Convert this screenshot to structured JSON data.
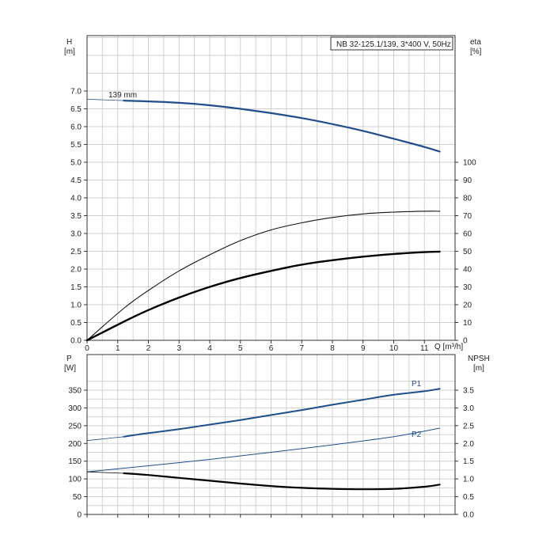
{
  "chart_data": [
    {
      "type": "line",
      "title": "NB 32-125.1/139, 3*400 V, 50Hz",
      "x_label": "Q [m³/h]",
      "x_ticks": [
        "0",
        "1",
        "2",
        "3",
        "4",
        "5",
        "6",
        "7",
        "8",
        "9",
        "10",
        "11"
      ],
      "xlim": [
        0,
        12
      ],
      "y_left": {
        "label_line1": "H",
        "label_line2": "[m]",
        "ticks": [
          "0.0",
          "0.5",
          "1.0",
          "1.5",
          "2.0",
          "2.5",
          "3.0",
          "3.5",
          "4.0",
          "4.5",
          "5.0",
          "5.5",
          "6.0",
          "6.5",
          "7.0"
        ],
        "ylim": [
          0,
          7.0
        ]
      },
      "y_right": {
        "label_line1": "eta",
        "label_line2": "[%]",
        "ticks": [
          "0",
          "10",
          "20",
          "30",
          "40",
          "50",
          "60",
          "70",
          "80",
          "90",
          "100"
        ],
        "ylim": [
          0,
          100
        ]
      },
      "grid": true,
      "series": [
        {
          "name": "139 mm",
          "axis": "H",
          "color": "#1f4e8c",
          "x": [
            1.2,
            2,
            3,
            4,
            5,
            6,
            7,
            8,
            9,
            10,
            11,
            11.5
          ],
          "y": [
            6.73,
            6.71,
            6.67,
            6.6,
            6.5,
            6.38,
            6.24,
            6.07,
            5.88,
            5.66,
            5.43,
            5.3
          ],
          "extrapolation": [
            [
              0,
              6.77
            ],
            [
              1.2,
              6.73
            ]
          ]
        },
        {
          "name": "",
          "axis": "eta",
          "color": "#111111",
          "x": [
            0,
            1.2,
            2,
            3,
            4,
            5,
            6,
            7,
            8,
            9,
            10,
            11,
            11.5
          ],
          "y": [
            0,
            18,
            28,
            39,
            48,
            56,
            62,
            66,
            69,
            71,
            72,
            72.5,
            72.5
          ]
        },
        {
          "name": "",
          "axis": "eta",
          "color": "#000000",
          "x": [
            0,
            1.2,
            2,
            3,
            4,
            5,
            6,
            7,
            8,
            9,
            10,
            11,
            11.5
          ],
          "y": [
            0,
            10.5,
            17,
            24,
            30,
            35,
            39,
            42.5,
            45,
            47,
            48.5,
            49.5,
            49.8
          ]
        }
      ],
      "annotations": [
        "139 mm"
      ]
    },
    {
      "type": "line",
      "x_ticks": [
        "0",
        "1",
        "2",
        "3",
        "4",
        "5",
        "6",
        "7",
        "8",
        "9",
        "10",
        "11"
      ],
      "xlim": [
        0,
        12
      ],
      "y_left": {
        "label_line1": "P",
        "label_line2": "[W]",
        "ticks": [
          "0",
          "50",
          "100",
          "150",
          "200",
          "250",
          "300",
          "350"
        ],
        "ylim": [
          0,
          390
        ]
      },
      "y_right": {
        "label_line1": "NPSH",
        "label_line2": "[m]",
        "ticks": [
          "0.0",
          "0.5",
          "1.0",
          "1.5",
          "2.0",
          "2.5",
          "3.0",
          "3.5"
        ],
        "ylim": [
          0,
          3.9
        ]
      },
      "grid": true,
      "series": [
        {
          "name": "P1",
          "axis": "P",
          "color": "#1f4e8c",
          "x": [
            1.2,
            2,
            3,
            4,
            5,
            6,
            7,
            8,
            9,
            10,
            11,
            11.5
          ],
          "y": [
            219,
            229,
            240,
            253,
            266,
            280,
            294,
            309,
            323,
            337,
            347,
            354
          ],
          "extrapolation": [
            [
              0,
              208
            ],
            [
              1.2,
              219
            ]
          ]
        },
        {
          "name": "P2",
          "axis": "P",
          "color": "#1f4e8c",
          "x": [
            0,
            2,
            4,
            6,
            8,
            10,
            11.5
          ],
          "y": [
            120,
            137,
            155,
            175,
            196,
            219,
            243
          ]
        },
        {
          "name": "",
          "axis": "NPSH",
          "color": "#000000",
          "x": [
            1.2,
            2,
            3,
            4,
            5,
            6,
            7,
            8,
            9,
            10,
            11,
            11.5
          ],
          "y": [
            1.16,
            1.11,
            1.03,
            0.95,
            0.87,
            0.8,
            0.75,
            0.72,
            0.71,
            0.72,
            0.78,
            0.84
          ],
          "extrapolation": [
            [
              0,
              1.2
            ],
            [
              1.2,
              1.16
            ]
          ]
        }
      ]
    }
  ],
  "colors": {
    "curve_blue": "#1f4e8c",
    "curve_black": "#000000",
    "grid": "#d0d0d0",
    "frame": "#333333"
  }
}
